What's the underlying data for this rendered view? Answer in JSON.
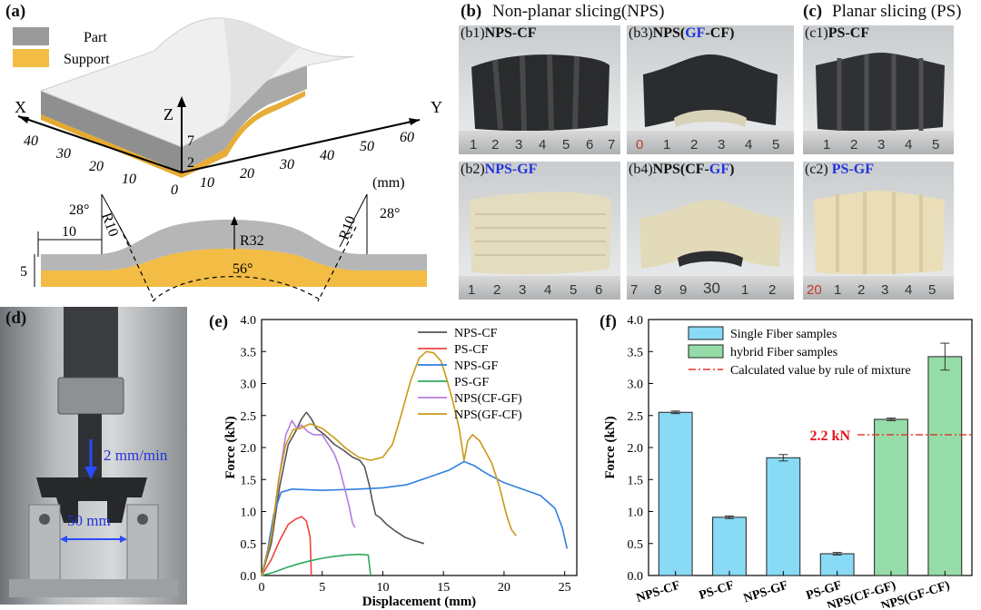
{
  "panel_a": {
    "label": "(a)",
    "legend": {
      "part": "Part",
      "support": "Support"
    },
    "axes": {
      "x": "X",
      "y": "Y",
      "z": "Z",
      "unit": "(mm)"
    },
    "x_ticks": [
      "40",
      "30",
      "20",
      "10",
      "0"
    ],
    "y_ticks": [
      "10",
      "20",
      "30",
      "40",
      "50",
      "60"
    ],
    "z_ticks": [
      "7",
      "2"
    ],
    "section": {
      "angle_left": "28°",
      "angle_right": "28°",
      "r10_left": "R10",
      "r10_right": "R10",
      "r32": "R32",
      "angle_center": "56°",
      "dim_10": "10",
      "dim_5": "5"
    }
  },
  "panel_b": {
    "label": "(b)",
    "title": "Non-planar slicing(NPS)",
    "b1": {
      "prefix": "(b1)",
      "name": "NPS-CF",
      "ruler": [
        "1",
        "2",
        "3",
        "4",
        "5",
        "6",
        "7"
      ]
    },
    "b2": {
      "prefix": "(b2)",
      "name": "NPS-GF",
      "ruler": [
        "1",
        "2",
        "3",
        "4",
        "5",
        "6"
      ]
    },
    "b3": {
      "prefix": "(b3)",
      "name_a": "NPS(",
      "name_b": "GF",
      "name_c": "-CF)",
      "ruler": [
        "0",
        "1",
        "2",
        "3",
        "4",
        "5"
      ]
    },
    "b4": {
      "prefix": "(b4)",
      "name_a": "NPS(CF-",
      "name_b": "GF",
      "name_c": ")",
      "ruler": [
        "7",
        "8",
        "9",
        "30",
        "1",
        "2"
      ]
    }
  },
  "panel_c": {
    "label": "(c)",
    "title": "Planar slicing (PS)",
    "c1": {
      "prefix": "(c1)",
      "name": "PS-CF",
      "ruler": [
        "1",
        "2",
        "3",
        "4",
        "5"
      ]
    },
    "c2": {
      "prefix": "(c2)",
      "name": "PS-GF",
      "ruler": [
        "20",
        "1",
        "2",
        "3",
        "4",
        "5"
      ]
    }
  },
  "panel_d": {
    "label": "(d)",
    "speed": "2 mm/min",
    "span": "50 mm"
  },
  "panel_e": {
    "label": "(e)"
  },
  "panel_f": {
    "label": "(f)",
    "annotation": "2.2 kN"
  },
  "colors": {
    "part": "#9a9a9a",
    "support": "#f2bc45",
    "bar_single": "#88daf5",
    "bar_hybrid": "#95dca8",
    "rule_line": "#e0322b",
    "annotation_blue": "#2233dd"
  },
  "chart_data": [
    {
      "id": "e",
      "type": "line",
      "title": "",
      "xlabel": "Displacement (mm)",
      "ylabel": "Force (kN)",
      "xlim": [
        0,
        26
      ],
      "ylim": [
        0,
        4.0
      ],
      "x_ticks": [
        "0",
        "5",
        "10",
        "15",
        "20",
        "25"
      ],
      "y_ticks": [
        "0.0",
        "0.5",
        "1.0",
        "1.5",
        "2.0",
        "2.5",
        "3.0",
        "3.5",
        "4.0"
      ],
      "series": [
        {
          "name": "NPS-CF",
          "color": "#555555",
          "points": [
            [
              0,
              0
            ],
            [
              0.8,
              0.5
            ],
            [
              1.5,
              1.4
            ],
            [
              2.2,
              2.05
            ],
            [
              2.8,
              2.25
            ],
            [
              3.3,
              2.45
            ],
            [
              3.7,
              2.55
            ],
            [
              4.1,
              2.45
            ],
            [
              4.5,
              2.3
            ],
            [
              5.2,
              2.2
            ],
            [
              6.0,
              2.05
            ],
            [
              6.8,
              1.95
            ],
            [
              7.5,
              1.85
            ],
            [
              8.1,
              1.8
            ],
            [
              8.5,
              1.7
            ],
            [
              8.9,
              1.4
            ],
            [
              9.1,
              1.2
            ],
            [
              9.4,
              0.95
            ],
            [
              9.8,
              0.9
            ],
            [
              10.3,
              0.8
            ],
            [
              11,
              0.7
            ],
            [
              11.8,
              0.6
            ],
            [
              12.5,
              0.55
            ],
            [
              13.4,
              0.5
            ]
          ]
        },
        {
          "name": "PS-CF",
          "color": "#f0443d",
          "points": [
            [
              0,
              0
            ],
            [
              0.8,
              0.25
            ],
            [
              1.5,
              0.55
            ],
            [
              2.2,
              0.8
            ],
            [
              2.8,
              0.88
            ],
            [
              3.3,
              0.92
            ],
            [
              3.7,
              0.85
            ],
            [
              4.0,
              0.6
            ],
            [
              4.05,
              0.3
            ],
            [
              4.1,
              0.0
            ]
          ]
        },
        {
          "name": "NPS-GF",
          "color": "#2f7fe0",
          "points": [
            [
              0,
              0
            ],
            [
              0.5,
              0.4
            ],
            [
              1.0,
              0.95
            ],
            [
              1.6,
              1.3
            ],
            [
              2.5,
              1.35
            ],
            [
              5,
              1.33
            ],
            [
              8,
              1.35
            ],
            [
              10,
              1.37
            ],
            [
              12,
              1.42
            ],
            [
              14,
              1.55
            ],
            [
              15.5,
              1.65
            ],
            [
              16.7,
              1.78
            ],
            [
              17.5,
              1.72
            ],
            [
              18.5,
              1.6
            ],
            [
              20,
              1.45
            ],
            [
              21.5,
              1.35
            ],
            [
              23,
              1.25
            ],
            [
              24.2,
              1.05
            ],
            [
              24.8,
              0.75
            ],
            [
              25.2,
              0.42
            ]
          ]
        },
        {
          "name": "PS-GF",
          "color": "#2ea860",
          "points": [
            [
              0,
              0
            ],
            [
              1.0,
              0.05
            ],
            [
              2.0,
              0.12
            ],
            [
              3.0,
              0.18
            ],
            [
              4.0,
              0.23
            ],
            [
              5.0,
              0.27
            ],
            [
              6.0,
              0.3
            ],
            [
              7.0,
              0.32
            ],
            [
              8.0,
              0.33
            ],
            [
              8.8,
              0.32
            ],
            [
              9.0,
              0.0
            ]
          ]
        },
        {
          "name": "NPS(CF-GF)",
          "color": "#b57be0",
          "points": [
            [
              0,
              0
            ],
            [
              0.8,
              0.6
            ],
            [
              1.5,
              1.6
            ],
            [
              2.0,
              2.2
            ],
            [
              2.5,
              2.42
            ],
            [
              2.9,
              2.3
            ],
            [
              3.3,
              2.35
            ],
            [
              3.8,
              2.25
            ],
            [
              4.3,
              2.2
            ],
            [
              5.0,
              2.2
            ],
            [
              5.5,
              2.05
            ],
            [
              6.0,
              1.9
            ],
            [
              6.4,
              1.7
            ],
            [
              6.8,
              1.4
            ],
            [
              7.2,
              1.1
            ],
            [
              7.5,
              0.82
            ],
            [
              7.7,
              0.75
            ]
          ]
        },
        {
          "name": "NPS(GF-CF)",
          "color": "#c99a17",
          "points": [
            [
              0,
              0
            ],
            [
              0.8,
              0.6
            ],
            [
              1.4,
              1.5
            ],
            [
              2.0,
              2.05
            ],
            [
              2.6,
              2.28
            ],
            [
              3.2,
              2.3
            ],
            [
              4.0,
              2.37
            ],
            [
              5.0,
              2.3
            ],
            [
              6.0,
              2.15
            ],
            [
              7.0,
              1.98
            ],
            [
              8.0,
              1.85
            ],
            [
              9.0,
              1.8
            ],
            [
              10.0,
              1.85
            ],
            [
              10.8,
              2.05
            ],
            [
              11.5,
              2.5
            ],
            [
              12.3,
              3.05
            ],
            [
              13.0,
              3.4
            ],
            [
              13.6,
              3.5
            ],
            [
              14.2,
              3.48
            ],
            [
              14.8,
              3.35
            ],
            [
              15.3,
              3.05
            ],
            [
              15.8,
              2.7
            ],
            [
              16.3,
              2.3
            ],
            [
              16.7,
              1.8
            ],
            [
              17.0,
              2.1
            ],
            [
              17.4,
              2.2
            ],
            [
              18.0,
              2.1
            ],
            [
              19.0,
              1.75
            ],
            [
              19.6,
              1.4
            ],
            [
              20.2,
              0.95
            ],
            [
              20.6,
              0.72
            ],
            [
              21.0,
              0.62
            ]
          ]
        }
      ]
    },
    {
      "id": "f",
      "type": "bar",
      "title": "",
      "xlabel": "",
      "ylabel": "Force (kN)",
      "ylim": [
        0,
        4.0
      ],
      "y_ticks": [
        "0.0",
        "0.5",
        "1.0",
        "1.5",
        "2.0",
        "2.5",
        "3.0",
        "3.5",
        "4.0"
      ],
      "categories": [
        "NPS-CF",
        "PS-CF",
        "NPS-GF",
        "PS-GF",
        "NPS(CF-GF)",
        "NPS(GF-CF)"
      ],
      "values": [
        2.55,
        0.91,
        1.84,
        0.34,
        2.44,
        3.42
      ],
      "errors": [
        0.02,
        0.02,
        0.05,
        0.02,
        0.02,
        0.21
      ],
      "groups": [
        "single",
        "single",
        "single",
        "single",
        "hybrid",
        "hybrid"
      ],
      "legend": [
        "Single Fiber samples",
        "hybrid Fiber samples",
        "Calculated value by rule of mixture"
      ],
      "reference_value": 2.2
    }
  ]
}
